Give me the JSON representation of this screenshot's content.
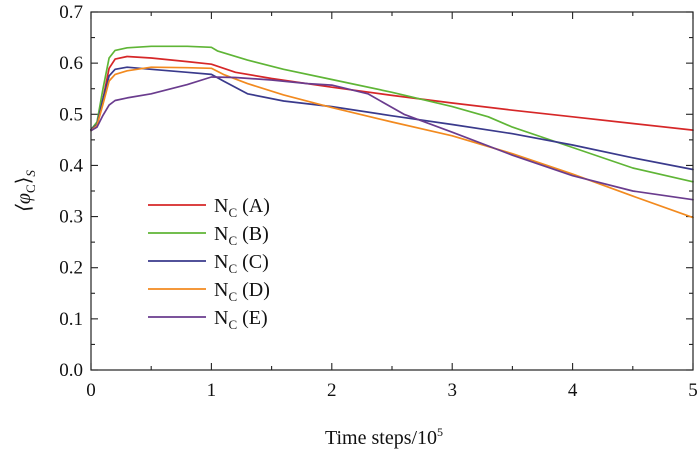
{
  "chart_data": {
    "type": "line",
    "xlabel": "Time steps/10",
    "xlabel_sup": "5",
    "ylabel_main": "⟨φ",
    "ylabel_sub1": "C",
    "ylabel_close": "⟩",
    "ylabel_sub2": "S",
    "xlim": [
      0,
      5
    ],
    "ylim": [
      0.0,
      0.7
    ],
    "xticks": [
      0,
      1,
      2,
      3,
      4,
      5
    ],
    "xtick_labels": [
      "0",
      "1",
      "2",
      "3",
      "4",
      "5"
    ],
    "yticks": [
      0.0,
      0.1,
      0.2,
      0.3,
      0.4,
      0.5,
      0.6,
      0.7
    ],
    "ytick_labels": [
      "0.0",
      "0.1",
      "0.2",
      "0.3",
      "0.4",
      "0.5",
      "0.6",
      "0.7"
    ],
    "grid": false,
    "legend_position": "left-middle",
    "series": [
      {
        "name": "N",
        "name_sub": "C",
        "name_suffix": " (A)",
        "color": "#d62728",
        "x": [
          0,
          0.05,
          0.1,
          0.15,
          0.2,
          0.3,
          0.5,
          0.8,
          1.0,
          1.2,
          1.5,
          2.0,
          2.5,
          3.0,
          3.5,
          4.0,
          4.5,
          5.0
        ],
        "y": [
          0.47,
          0.48,
          0.53,
          0.59,
          0.608,
          0.613,
          0.61,
          0.603,
          0.598,
          0.582,
          0.57,
          0.553,
          0.537,
          0.522,
          0.508,
          0.495,
          0.482,
          0.469
        ]
      },
      {
        "name": "N",
        "name_sub": "C",
        "name_suffix": " (B)",
        "color": "#5fb536",
        "x": [
          0,
          0.05,
          0.1,
          0.15,
          0.2,
          0.3,
          0.5,
          0.8,
          1.0,
          1.05,
          1.3,
          1.6,
          2.0,
          2.5,
          3.0,
          3.3,
          3.5,
          4.0,
          4.5,
          5.0
        ],
        "y": [
          0.47,
          0.485,
          0.55,
          0.61,
          0.625,
          0.63,
          0.633,
          0.633,
          0.631,
          0.624,
          0.606,
          0.588,
          0.568,
          0.543,
          0.515,
          0.495,
          0.475,
          0.435,
          0.395,
          0.368
        ]
      },
      {
        "name": "N",
        "name_sub": "C",
        "name_suffix": " (C)",
        "color": "#3a3a8c",
        "x": [
          0,
          0.05,
          0.1,
          0.15,
          0.2,
          0.3,
          0.5,
          0.8,
          1.0,
          1.1,
          1.3,
          1.6,
          2.0,
          2.5,
          3.0,
          3.5,
          4.0,
          4.5,
          5.0
        ],
        "y": [
          0.47,
          0.48,
          0.53,
          0.575,
          0.588,
          0.592,
          0.588,
          0.582,
          0.578,
          0.565,
          0.54,
          0.526,
          0.515,
          0.497,
          0.48,
          0.462,
          0.44,
          0.415,
          0.392
        ]
      },
      {
        "name": "N",
        "name_sub": "C",
        "name_suffix": " (D)",
        "color": "#f28a1f",
        "x": [
          0,
          0.05,
          0.1,
          0.15,
          0.2,
          0.3,
          0.5,
          0.8,
          1.0,
          1.1,
          1.3,
          1.6,
          2.0,
          2.5,
          3.0,
          3.5,
          4.0,
          4.5,
          5.0
        ],
        "y": [
          0.468,
          0.478,
          0.52,
          0.565,
          0.578,
          0.585,
          0.592,
          0.591,
          0.59,
          0.578,
          0.56,
          0.538,
          0.513,
          0.485,
          0.458,
          0.423,
          0.383,
          0.34,
          0.298
        ]
      },
      {
        "name": "N",
        "name_sub": "C",
        "name_suffix": " (E)",
        "color": "#6a3c8e",
        "x": [
          0,
          0.05,
          0.1,
          0.15,
          0.2,
          0.3,
          0.5,
          0.8,
          1.0,
          1.2,
          1.5,
          1.8,
          2.0,
          2.3,
          2.6,
          3.0,
          3.5,
          4.0,
          4.5,
          5.0
        ],
        "y": [
          0.468,
          0.475,
          0.498,
          0.518,
          0.527,
          0.532,
          0.54,
          0.558,
          0.573,
          0.572,
          0.567,
          0.56,
          0.557,
          0.54,
          0.5,
          0.465,
          0.42,
          0.38,
          0.35,
          0.333
        ]
      }
    ]
  }
}
